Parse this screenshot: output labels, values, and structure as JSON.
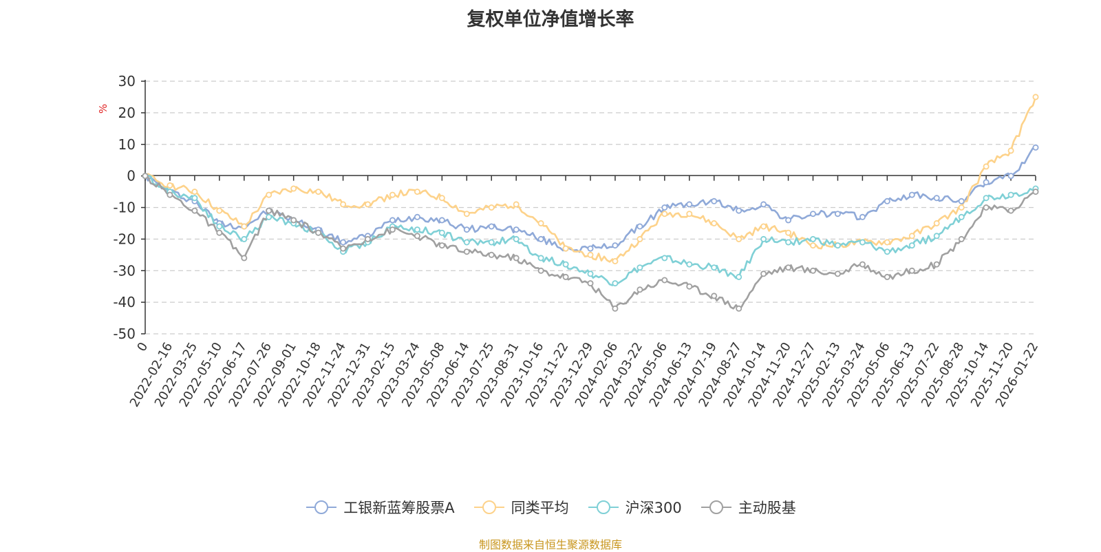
{
  "chart_data": {
    "type": "line",
    "title": "复权单位净值增长率",
    "xlabel": "",
    "ylabel": "%",
    "ylim": [
      -50,
      30
    ],
    "yticks": [
      30,
      20,
      10,
      0,
      -10,
      -20,
      -30,
      -40,
      -50
    ],
    "grid": true,
    "legend_position": "bottom",
    "categories": [
      "0",
      "2022-02-16",
      "2022-03-25",
      "2022-05-10",
      "2022-06-17",
      "2022-07-26",
      "2022-09-01",
      "2022-10-18",
      "2022-11-24",
      "2022-12-31",
      "2023-02-15",
      "2023-03-24",
      "2023-05-08",
      "2023-06-14",
      "2023-07-25",
      "2023-08-31",
      "2023-10-16",
      "2023-11-22",
      "2023-12-29",
      "2024-02-06",
      "2024-03-22",
      "2024-05-06",
      "2024-06-13",
      "2024-07-19",
      "2024-08-27",
      "2024-10-14",
      "2024-11-20",
      "2024-12-27",
      "2025-02-13",
      "2025-03-24",
      "2025-05-06",
      "2025-06-13",
      "2025-07-22",
      "2025-08-28",
      "2025-10-14",
      "2025-11-20",
      "2026-01-22"
    ],
    "series": [
      {
        "name": "工银新蓝筹股票A",
        "color": "#8fa9d8",
        "values": [
          0,
          -5,
          -8,
          -15,
          -16,
          -11,
          -14,
          -17,
          -21,
          -19,
          -14,
          -13,
          -14,
          -17,
          -16,
          -17,
          -20,
          -23,
          -23,
          -22,
          -16,
          -10,
          -9,
          -8,
          -11,
          -9,
          -14,
          -12,
          -12,
          -13,
          -8,
          -6,
          -7,
          -8,
          -2,
          0,
          9
        ]
      },
      {
        "name": "同类平均",
        "color": "#fdd28a",
        "values": [
          0,
          -3,
          -5,
          -11,
          -16,
          -6,
          -4,
          -5,
          -9,
          -9,
          -6,
          -5,
          -7,
          -12,
          -10,
          -9,
          -15,
          -23,
          -25,
          -27,
          -20,
          -12,
          -12,
          -15,
          -20,
          -16,
          -18,
          -22,
          -22,
          -21,
          -21,
          -19,
          -15,
          -10,
          3,
          8,
          25
        ]
      },
      {
        "name": "沪深300",
        "color": "#7fd0d6",
        "values": [
          0,
          -5,
          -7,
          -16,
          -20,
          -13,
          -15,
          -18,
          -24,
          -21,
          -16,
          -17,
          -18,
          -21,
          -21,
          -20,
          -26,
          -28,
          -31,
          -34,
          -29,
          -26,
          -28,
          -29,
          -32,
          -20,
          -21,
          -20,
          -22,
          -21,
          -24,
          -22,
          -19,
          -13,
          -7,
          -6,
          -4
        ]
      },
      {
        "name": "主动股基",
        "color": "#a0a0a0",
        "values": [
          0,
          -6,
          -11,
          -18,
          -26,
          -11,
          -14,
          -18,
          -23,
          -20,
          -17,
          -19,
          -22,
          -24,
          -25,
          -26,
          -30,
          -32,
          -34,
          -42,
          -36,
          -33,
          -35,
          -38,
          -42,
          -31,
          -29,
          -30,
          -31,
          -28,
          -32,
          -30,
          -28,
          -20,
          -10,
          -11,
          -5
        ]
      }
    ]
  },
  "source_note": "制图数据来自恒生聚源数据库"
}
